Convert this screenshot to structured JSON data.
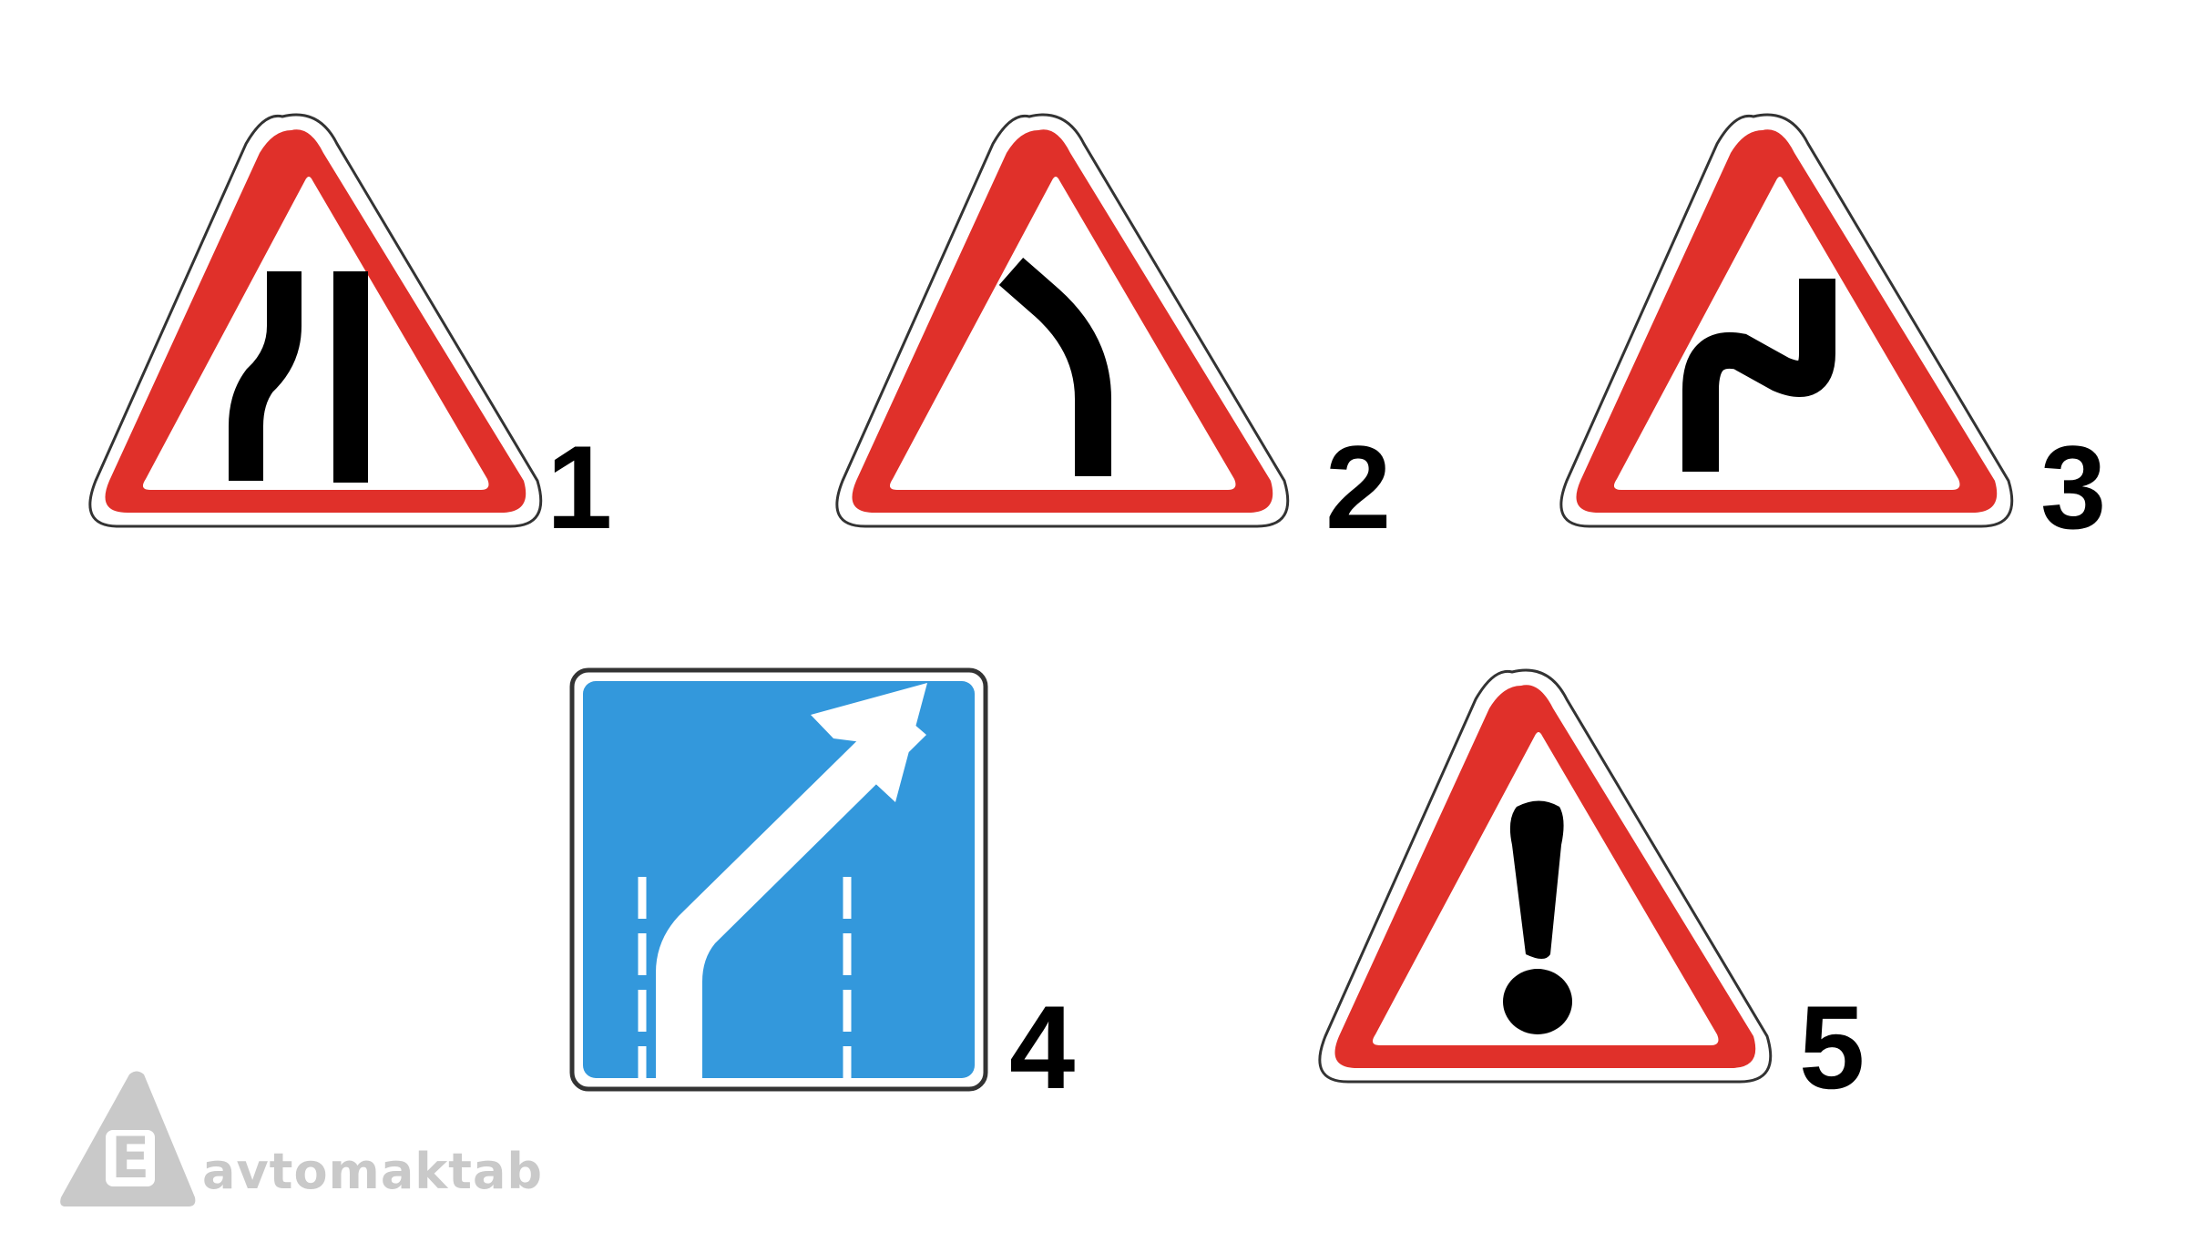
{
  "signs": [
    {
      "number": "1",
      "icon": "road-narrows-left-icon"
    },
    {
      "number": "2",
      "icon": "bend-left-icon"
    },
    {
      "number": "3",
      "icon": "double-bend-icon"
    },
    {
      "number": "4",
      "icon": "lane-shift-right-icon"
    },
    {
      "number": "5",
      "icon": "exclamation-danger-icon"
    }
  ],
  "logo": {
    "text": "avtomaktab",
    "letter": "E"
  },
  "colors": {
    "red": "#e0302a",
    "blue": "#3398dc",
    "black": "#000000",
    "white": "#ffffff",
    "logo_gray": "#c9c9c9"
  }
}
